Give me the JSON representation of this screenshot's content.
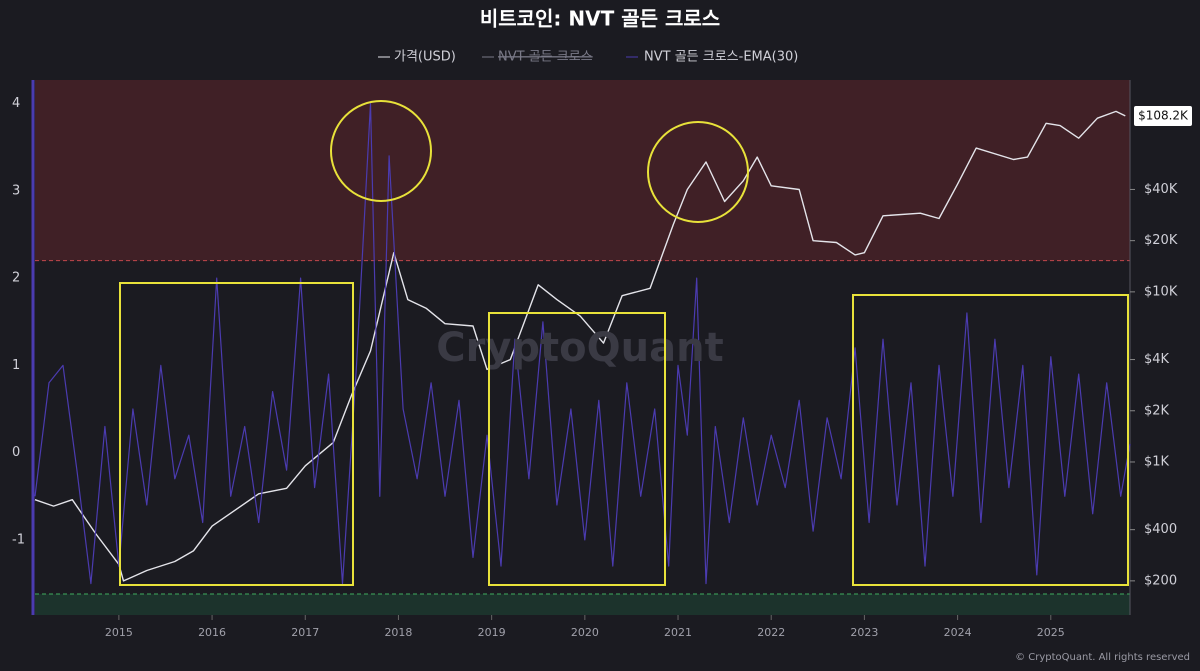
{
  "chart_data": {
    "type": "line",
    "title": "비트코인: NVT 골든 크로스",
    "watermark": "CryptoQuant",
    "footer": "© CryptoQuant. All rights reserved",
    "xlim": [
      2014.1,
      2025.85
    ],
    "xticks": [
      2015,
      2016,
      2017,
      2018,
      2019,
      2020,
      2021,
      2022,
      2023,
      2024,
      2025
    ],
    "ylim": [
      -1.86,
      4.27
    ],
    "yticks": [
      -1,
      0,
      1,
      2,
      3,
      4
    ],
    "y2lim": [
      126,
      176000
    ],
    "y2scale": "log",
    "y2ticks": [
      {
        "value": 200,
        "label": "$200"
      },
      {
        "value": 400,
        "label": "$400"
      },
      {
        "value": 1000,
        "label": "$1K"
      },
      {
        "value": 2000,
        "label": "$2K"
      },
      {
        "value": 4000,
        "label": "$4K"
      },
      {
        "value": 10000,
        "label": "$10K"
      },
      {
        "value": 20000,
        "label": "$20K"
      },
      {
        "value": 40000,
        "label": "$40K"
      }
    ],
    "upper_threshold": 2.2,
    "lower_threshold": -1.62,
    "series": [
      {
        "name": "가격(USD)",
        "color": "#e4e4ea",
        "axis": "y2",
        "last_value_label": "$108.2K",
        "x": [
          2014.1,
          2014.3,
          2014.5,
          2014.75,
          2015.0,
          2015.05,
          2015.3,
          2015.6,
          2015.8,
          2016.0,
          2016.5,
          2016.8,
          2017.0,
          2017.3,
          2017.5,
          2017.7,
          2017.95,
          2018.1,
          2018.3,
          2018.5,
          2018.8,
          2018.95,
          2019.2,
          2019.5,
          2019.7,
          2019.95,
          2020.2,
          2020.4,
          2020.7,
          2020.95,
          2021.1,
          2021.3,
          2021.5,
          2021.7,
          2021.85,
          2022.0,
          2022.3,
          2022.45,
          2022.7,
          2022.9,
          2023.0,
          2023.2,
          2023.6,
          2023.8,
          2024.0,
          2024.2,
          2024.6,
          2024.75,
          2024.95,
          2025.1,
          2025.3,
          2025.5,
          2025.7,
          2025.8
        ],
        "values": [
          600,
          550,
          600,
          380,
          250,
          200,
          230,
          260,
          300,
          420,
          650,
          700,
          950,
          1300,
          2500,
          4500,
          17000,
          9000,
          8000,
          6500,
          6300,
          3500,
          4000,
          11000,
          9000,
          7200,
          5000,
          9500,
          10500,
          25000,
          40000,
          58000,
          34000,
          45000,
          62000,
          42000,
          40000,
          20000,
          19500,
          16500,
          17000,
          28000,
          29000,
          27000,
          43000,
          70000,
          60000,
          62000,
          98000,
          95000,
          80000,
          105000,
          115000,
          108200
        ]
      },
      {
        "name": "NVT 골든 크로스",
        "color": "#7a7a88",
        "hidden": true
      },
      {
        "name": "NVT 골든 크로스-EMA(30)",
        "color": "#4b3bb0",
        "x": [
          2014.1,
          2014.25,
          2014.4,
          2014.55,
          2014.7,
          2014.85,
          2015.0,
          2015.15,
          2015.3,
          2015.45,
          2015.6,
          2015.75,
          2015.9,
          2016.05,
          2016.2,
          2016.35,
          2016.5,
          2016.65,
          2016.8,
          2016.95,
          2017.1,
          2017.25,
          2017.4,
          2017.55,
          2017.7,
          2017.8,
          2017.9,
          2018.05,
          2018.2,
          2018.35,
          2018.5,
          2018.65,
          2018.8,
          2018.95,
          2019.1,
          2019.25,
          2019.4,
          2019.55,
          2019.7,
          2019.85,
          2020.0,
          2020.15,
          2020.3,
          2020.45,
          2020.6,
          2020.75,
          2020.9,
          2021.0,
          2021.1,
          2021.2,
          2021.3,
          2021.4,
          2021.55,
          2021.7,
          2021.85,
          2022.0,
          2022.15,
          2022.3,
          2022.45,
          2022.6,
          2022.75,
          2022.9,
          2023.05,
          2023.2,
          2023.35,
          2023.5,
          2023.65,
          2023.8,
          2023.95,
          2024.1,
          2024.25,
          2024.4,
          2024.55,
          2024.7,
          2024.85,
          2025.0,
          2025.15,
          2025.3,
          2025.45,
          2025.6,
          2025.75,
          2025.85
        ],
        "values": [
          -0.5,
          0.8,
          1.0,
          -0.2,
          -1.5,
          0.3,
          -1.3,
          0.5,
          -0.6,
          1.0,
          -0.3,
          0.2,
          -0.8,
          2.0,
          -0.5,
          0.3,
          -0.8,
          0.7,
          -0.2,
          2.0,
          -0.4,
          0.9,
          -1.5,
          1.0,
          4.0,
          -0.5,
          3.4,
          0.5,
          -0.3,
          0.8,
          -0.5,
          0.6,
          -1.2,
          0.2,
          -1.3,
          1.3,
          -0.3,
          1.5,
          -0.6,
          0.5,
          -1.0,
          0.6,
          -1.3,
          0.8,
          -0.5,
          0.5,
          -1.3,
          1.0,
          0.2,
          2.0,
          -1.5,
          0.3,
          -0.8,
          0.4,
          -0.6,
          0.2,
          -0.4,
          0.6,
          -0.9,
          0.4,
          -0.3,
          1.2,
          -0.8,
          1.3,
          -0.6,
          0.8,
          -1.3,
          1.0,
          -0.5,
          1.6,
          -0.8,
          1.3,
          -0.4,
          1.0,
          -1.4,
          1.1,
          -0.5,
          0.9,
          -0.7,
          0.8,
          -0.5,
          0.1
        ]
      }
    ]
  }
}
